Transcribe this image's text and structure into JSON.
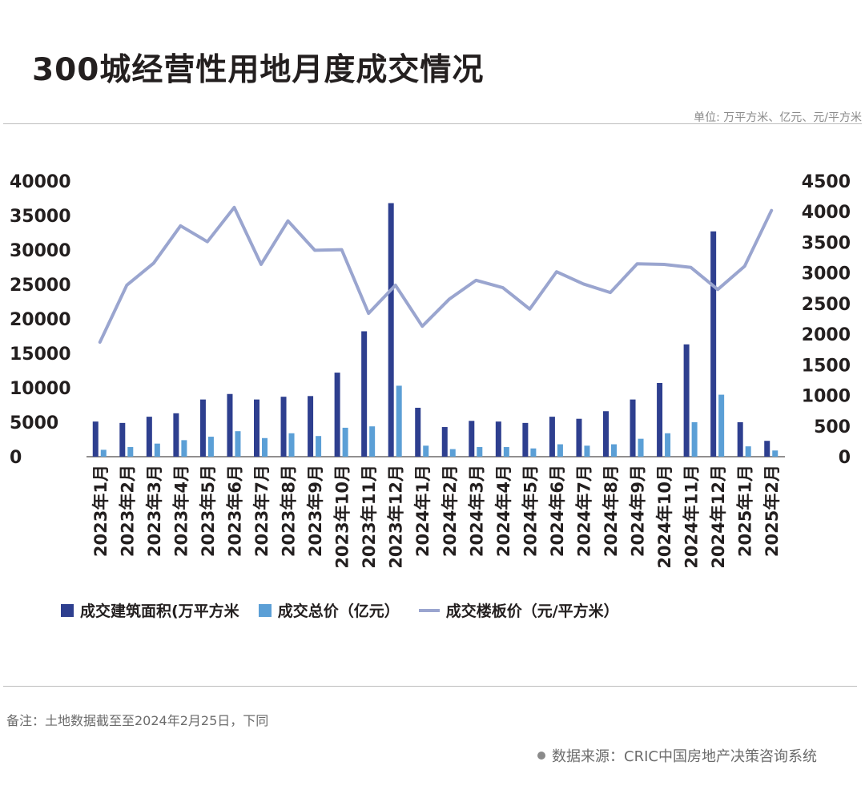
{
  "title": "300城经营性用地月度成交情况",
  "unit_note": "单位: 万平方米、亿元、元/平方米",
  "legend": {
    "area": "成交建筑面积(万平方米",
    "total": "成交总价（亿元）",
    "price": "成交楼板价（元/平方米）"
  },
  "note": "备注：土地数据截至至2024年2月25日，下同",
  "source": "数据来源：CRIC中国房地产决策咨询系统",
  "colors": {
    "area": "#2e3f8f",
    "total": "#5b9fd6",
    "price": "#9aa5cf"
  },
  "chart_data": {
    "type": "bar",
    "categories": [
      "2023年1月",
      "2023年2月",
      "2023年3月",
      "2023年4月",
      "2023年5月",
      "2023年6月",
      "2023年7月",
      "2023年8月",
      "2023年9月",
      "2023年10月",
      "2023年11月",
      "2023年12月",
      "2024年1月",
      "2024年2月",
      "2024年3月",
      "2024年4月",
      "2024年5月",
      "2024年6月",
      "2024年7月",
      "2024年8月",
      "2024年9月",
      "2024年10月",
      "2024年11月",
      "2024年12月",
      "2025年1月",
      "2025年2月"
    ],
    "series": [
      {
        "name": "成交建筑面积(万平方米",
        "axis": "left",
        "type": "bar",
        "values": [
          5100,
          4900,
          5800,
          6300,
          8300,
          9100,
          8300,
          8700,
          8800,
          12200,
          18200,
          36800,
          7100,
          4300,
          5200,
          5100,
          4900,
          5800,
          5500,
          6600,
          8300,
          10700,
          16300,
          32700,
          5000,
          2300
        ]
      },
      {
        "name": "成交总价（亿元）",
        "axis": "left",
        "type": "bar",
        "values": [
          1000,
          1400,
          1900,
          2400,
          2900,
          3700,
          2700,
          3400,
          3000,
          4200,
          4400,
          10300,
          1600,
          1100,
          1400,
          1400,
          1200,
          1800,
          1600,
          1800,
          2600,
          3400,
          5000,
          9000,
          1500,
          900
        ]
      },
      {
        "name": "成交楼板价（元/平方米）",
        "axis": "right",
        "type": "line",
        "values": [
          1870,
          2800,
          3160,
          3770,
          3510,
          4070,
          3140,
          3850,
          3370,
          3380,
          2340,
          2800,
          2130,
          2570,
          2880,
          2760,
          2410,
          3020,
          2820,
          2680,
          3150,
          3140,
          3090,
          2730,
          3110,
          4020
        ]
      }
    ],
    "y_left": {
      "min": 0,
      "max": 40000,
      "ticks": [
        0,
        5000,
        10000,
        15000,
        20000,
        25000,
        30000,
        35000,
        40000
      ]
    },
    "y_right": {
      "min": 0,
      "max": 4500,
      "ticks": [
        0,
        500,
        1000,
        1500,
        2000,
        2500,
        3000,
        3500,
        4000,
        4500
      ]
    },
    "grid": false,
    "legend_position": "bottom"
  }
}
